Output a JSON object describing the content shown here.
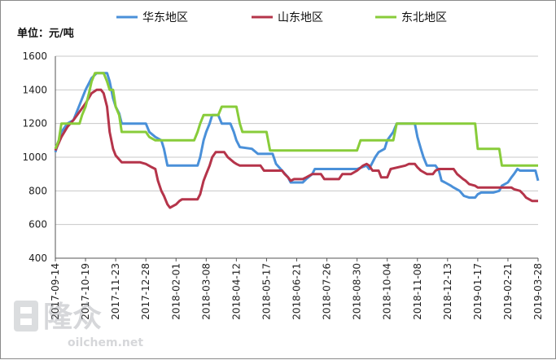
{
  "chart_data": {
    "type": "line",
    "unit_label": "单位：元/吨",
    "ylim": [
      400,
      1600
    ],
    "yticks": [
      400,
      600,
      800,
      1000,
      1200,
      1400,
      1600
    ],
    "x_range": [
      "2017-09-14",
      "2019-03-28"
    ],
    "x_tick_labels": [
      "2017-09-14",
      "2017-10-19",
      "2017-11-23",
      "2017-12-28",
      "2018-02-01",
      "2018-03-08",
      "2018-04-12",
      "2018-05-17",
      "2018-06-21",
      "2018-07-26",
      "2018-08-30",
      "2018-10-04",
      "2018-11-08",
      "2018-12-13",
      "2019-01-17",
      "2019-02-21",
      "2019-03-28"
    ],
    "legend_position": "top",
    "grid": "horizontal",
    "series": [
      {
        "name": "华东地区",
        "color": "#4a90d9",
        "points": [
          [
            "2017-09-14",
            1030
          ],
          [
            "2017-09-21",
            1150
          ],
          [
            "2017-09-28",
            1200
          ],
          [
            "2017-10-05",
            1220
          ],
          [
            "2017-10-12",
            1310
          ],
          [
            "2017-10-19",
            1400
          ],
          [
            "2017-10-26",
            1470
          ],
          [
            "2017-11-01",
            1500
          ],
          [
            "2017-11-06",
            1500
          ],
          [
            "2017-11-09",
            1500
          ],
          [
            "2017-11-13",
            1500
          ],
          [
            "2017-11-16",
            1450
          ],
          [
            "2017-11-20",
            1350
          ],
          [
            "2017-11-23",
            1300
          ],
          [
            "2017-11-27",
            1260
          ],
          [
            "2017-11-30",
            1200
          ],
          [
            "2017-12-28",
            1200
          ],
          [
            "2018-01-01",
            1150
          ],
          [
            "2018-01-08",
            1120
          ],
          [
            "2018-01-15",
            1100
          ],
          [
            "2018-01-18",
            1050
          ],
          [
            "2018-01-22",
            950
          ],
          [
            "2018-02-26",
            950
          ],
          [
            "2018-03-01",
            1000
          ],
          [
            "2018-03-05",
            1100
          ],
          [
            "2018-03-08",
            1150
          ],
          [
            "2018-03-12",
            1200
          ],
          [
            "2018-03-15",
            1250
          ],
          [
            "2018-03-22",
            1250
          ],
          [
            "2018-03-26",
            1200
          ],
          [
            "2018-04-05",
            1200
          ],
          [
            "2018-04-09",
            1150
          ],
          [
            "2018-04-12",
            1100
          ],
          [
            "2018-04-16",
            1060
          ],
          [
            "2018-04-30",
            1050
          ],
          [
            "2018-05-07",
            1020
          ],
          [
            "2018-05-24",
            1020
          ],
          [
            "2018-05-28",
            960
          ],
          [
            "2018-06-04",
            920
          ],
          [
            "2018-06-11",
            880
          ],
          [
            "2018-06-14",
            850
          ],
          [
            "2018-06-28",
            850
          ],
          [
            "2018-07-02",
            870
          ],
          [
            "2018-07-09",
            900
          ],
          [
            "2018-07-12",
            930
          ],
          [
            "2018-08-30",
            930
          ],
          [
            "2018-09-10",
            950
          ],
          [
            "2018-09-13",
            930
          ],
          [
            "2018-09-17",
            970
          ],
          [
            "2018-09-20",
            1000
          ],
          [
            "2018-09-24",
            1030
          ],
          [
            "2018-10-01",
            1050
          ],
          [
            "2018-10-04",
            1100
          ],
          [
            "2018-10-11",
            1150
          ],
          [
            "2018-10-15",
            1200
          ],
          [
            "2018-11-05",
            1200
          ],
          [
            "2018-11-08",
            1120
          ],
          [
            "2018-11-12",
            1050
          ],
          [
            "2018-11-15",
            1000
          ],
          [
            "2018-11-19",
            950
          ],
          [
            "2018-11-29",
            950
          ],
          [
            "2018-12-03",
            920
          ],
          [
            "2018-12-06",
            860
          ],
          [
            "2018-12-10",
            850
          ],
          [
            "2018-12-17",
            830
          ],
          [
            "2018-12-20",
            820
          ],
          [
            "2018-12-27",
            800
          ],
          [
            "2019-01-01",
            770
          ],
          [
            "2019-01-07",
            760
          ],
          [
            "2019-01-14",
            760
          ],
          [
            "2019-01-17",
            780
          ],
          [
            "2019-01-21",
            790
          ],
          [
            "2019-02-04",
            790
          ],
          [
            "2019-02-11",
            800
          ],
          [
            "2019-02-14",
            830
          ],
          [
            "2019-02-21",
            850
          ],
          [
            "2019-02-25",
            880
          ],
          [
            "2019-02-28",
            900
          ],
          [
            "2019-03-04",
            930
          ],
          [
            "2019-03-07",
            920
          ],
          [
            "2019-03-25",
            920
          ],
          [
            "2019-03-28",
            860
          ]
        ]
      },
      {
        "name": "山东地区",
        "color": "#b5344a",
        "points": [
          [
            "2017-09-14",
            1040
          ],
          [
            "2017-09-21",
            1120
          ],
          [
            "2017-09-28",
            1180
          ],
          [
            "2017-10-05",
            1220
          ],
          [
            "2017-10-12",
            1270
          ],
          [
            "2017-10-19",
            1320
          ],
          [
            "2017-10-26",
            1380
          ],
          [
            "2017-11-01",
            1400
          ],
          [
            "2017-11-06",
            1400
          ],
          [
            "2017-11-09",
            1380
          ],
          [
            "2017-11-13",
            1300
          ],
          [
            "2017-11-16",
            1150
          ],
          [
            "2017-11-20",
            1050
          ],
          [
            "2017-11-23",
            1010
          ],
          [
            "2017-11-30",
            970
          ],
          [
            "2017-12-21",
            970
          ],
          [
            "2017-12-28",
            960
          ],
          [
            "2018-01-04",
            940
          ],
          [
            "2018-01-08",
            930
          ],
          [
            "2018-01-11",
            860
          ],
          [
            "2018-01-15",
            800
          ],
          [
            "2018-01-18",
            770
          ],
          [
            "2018-01-22",
            720
          ],
          [
            "2018-01-25",
            700
          ],
          [
            "2018-02-01",
            720
          ],
          [
            "2018-02-05",
            740
          ],
          [
            "2018-02-08",
            750
          ],
          [
            "2018-02-26",
            750
          ],
          [
            "2018-03-01",
            780
          ],
          [
            "2018-03-05",
            860
          ],
          [
            "2018-03-08",
            900
          ],
          [
            "2018-03-12",
            950
          ],
          [
            "2018-03-15",
            1000
          ],
          [
            "2018-03-19",
            1030
          ],
          [
            "2018-03-29",
            1030
          ],
          [
            "2018-04-02",
            1000
          ],
          [
            "2018-04-09",
            970
          ],
          [
            "2018-04-12",
            960
          ],
          [
            "2018-04-16",
            950
          ],
          [
            "2018-05-10",
            950
          ],
          [
            "2018-05-14",
            920
          ],
          [
            "2018-06-04",
            920
          ],
          [
            "2018-06-07",
            900
          ],
          [
            "2018-06-11",
            880
          ],
          [
            "2018-06-14",
            860
          ],
          [
            "2018-06-18",
            870
          ],
          [
            "2018-06-28",
            870
          ],
          [
            "2018-07-02",
            880
          ],
          [
            "2018-07-09",
            900
          ],
          [
            "2018-07-19",
            900
          ],
          [
            "2018-07-23",
            870
          ],
          [
            "2018-08-09",
            870
          ],
          [
            "2018-08-13",
            900
          ],
          [
            "2018-08-23",
            900
          ],
          [
            "2018-08-30",
            920
          ],
          [
            "2018-09-06",
            950
          ],
          [
            "2018-09-10",
            960
          ],
          [
            "2018-09-13",
            950
          ],
          [
            "2018-09-17",
            920
          ],
          [
            "2018-09-24",
            920
          ],
          [
            "2018-09-27",
            880
          ],
          [
            "2018-10-04",
            880
          ],
          [
            "2018-10-08",
            930
          ],
          [
            "2018-10-25",
            950
          ],
          [
            "2018-10-29",
            960
          ],
          [
            "2018-11-05",
            960
          ],
          [
            "2018-11-08",
            940
          ],
          [
            "2018-11-12",
            920
          ],
          [
            "2018-11-19",
            900
          ],
          [
            "2018-11-26",
            900
          ],
          [
            "2018-11-29",
            920
          ],
          [
            "2018-12-03",
            930
          ],
          [
            "2018-12-20",
            930
          ],
          [
            "2018-12-24",
            900
          ],
          [
            "2018-12-31",
            870
          ],
          [
            "2019-01-03",
            860
          ],
          [
            "2019-01-07",
            840
          ],
          [
            "2019-01-14",
            830
          ],
          [
            "2019-01-17",
            820
          ],
          [
            "2019-02-25",
            820
          ],
          [
            "2019-02-28",
            810
          ],
          [
            "2019-03-07",
            800
          ],
          [
            "2019-03-11",
            780
          ],
          [
            "2019-03-14",
            760
          ],
          [
            "2019-03-21",
            740
          ],
          [
            "2019-03-28",
            740
          ]
        ]
      },
      {
        "name": "东北地区",
        "color": "#88cc3a",
        "points": [
          [
            "2017-09-14",
            1050
          ],
          [
            "2017-09-18",
            1100
          ],
          [
            "2017-09-21",
            1200
          ],
          [
            "2017-10-12",
            1200
          ],
          [
            "2017-10-15",
            1250
          ],
          [
            "2017-10-19",
            1300
          ],
          [
            "2017-10-23",
            1380
          ],
          [
            "2017-10-26",
            1450
          ],
          [
            "2017-10-30",
            1500
          ],
          [
            "2017-11-09",
            1500
          ],
          [
            "2017-11-13",
            1450
          ],
          [
            "2017-11-16",
            1400
          ],
          [
            "2017-11-20",
            1400
          ],
          [
            "2017-11-23",
            1300
          ],
          [
            "2017-11-27",
            1250
          ],
          [
            "2017-11-30",
            1150
          ],
          [
            "2017-12-28",
            1150
          ],
          [
            "2018-01-01",
            1120
          ],
          [
            "2018-01-08",
            1100
          ],
          [
            "2018-02-22",
            1100
          ],
          [
            "2018-02-26",
            1150
          ],
          [
            "2018-03-01",
            1200
          ],
          [
            "2018-03-05",
            1250
          ],
          [
            "2018-03-22",
            1250
          ],
          [
            "2018-03-26",
            1300
          ],
          [
            "2018-04-12",
            1300
          ],
          [
            "2018-04-16",
            1200
          ],
          [
            "2018-04-19",
            1150
          ],
          [
            "2018-05-17",
            1150
          ],
          [
            "2018-05-21",
            1040
          ],
          [
            "2018-08-30",
            1040
          ],
          [
            "2018-09-03",
            1100
          ],
          [
            "2018-10-11",
            1100
          ],
          [
            "2018-10-15",
            1200
          ],
          [
            "2019-01-14",
            1200
          ],
          [
            "2019-01-17",
            1050
          ],
          [
            "2019-02-11",
            1050
          ],
          [
            "2019-02-14",
            950
          ],
          [
            "2019-03-28",
            950
          ]
        ]
      }
    ]
  },
  "watermark": {
    "brand": "隆众",
    "url": "oilchem.net"
  }
}
